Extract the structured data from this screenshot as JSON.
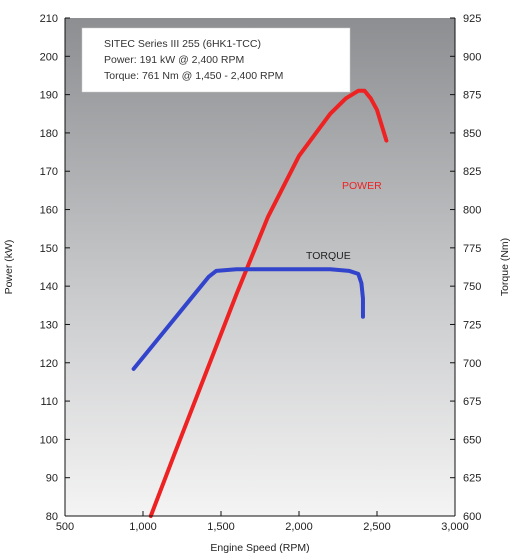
{
  "chart_data": {
    "type": "line",
    "title": "",
    "info_box": [
      "SITEC Series III 255 (6HK1-TCC)",
      "Power: 191 kW @ 2,400 RPM",
      "Torque: 761 Nm @ 1,450 - 2,400 RPM"
    ],
    "xlabel": "Engine Speed (RPM)",
    "ylabel_left": "Power (kW)",
    "ylabel_right": "Torque (Nm)",
    "xlim": [
      500,
      3000
    ],
    "ylim_left": [
      80,
      210
    ],
    "ylim_right": [
      600,
      925
    ],
    "x_tick_labels": [
      "500",
      "1,000",
      "1,500",
      "2,000",
      "2,500",
      "3,000"
    ],
    "x_ticks": [
      500,
      1000,
      1500,
      2000,
      2500,
      3000
    ],
    "y_left_ticks": [
      80,
      90,
      100,
      110,
      120,
      130,
      140,
      150,
      160,
      170,
      180,
      190,
      200,
      210
    ],
    "y_right_ticks": [
      600,
      625,
      650,
      675,
      700,
      725,
      750,
      775,
      800,
      825,
      850,
      875,
      900,
      925
    ],
    "grid": false,
    "series": [
      {
        "name": "POWER",
        "axis": "left",
        "color": "#ee2222",
        "x": [
          1050,
          1200,
          1400,
          1600,
          1800,
          2000,
          2200,
          2300,
          2380,
          2420,
          2460,
          2500,
          2560
        ],
        "y": [
          80,
          96,
          117,
          138,
          158,
          174,
          185,
          189,
          191,
          191,
          189,
          186,
          178
        ]
      },
      {
        "name": "TORQUE",
        "axis": "right",
        "color": "#3344cc",
        "x": [
          940,
          1100,
          1300,
          1420,
          1470,
          1600,
          1800,
          2000,
          2200,
          2320,
          2380,
          2400,
          2410,
          2410
        ],
        "y": [
          696,
          716,
          741,
          756,
          760,
          761,
          761,
          761,
          761,
          760,
          758,
          752,
          742,
          730
        ]
      }
    ]
  }
}
